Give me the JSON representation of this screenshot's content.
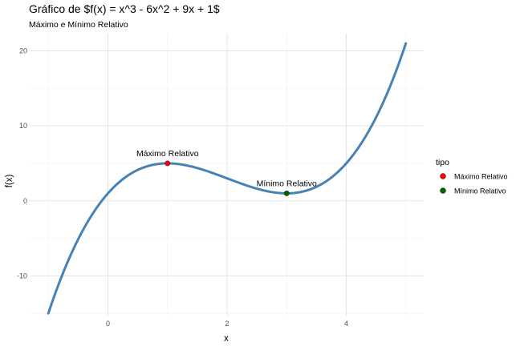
{
  "chart_data": {
    "type": "line",
    "title": "Gráfico de $f(x) = x^3 - 6x^2 + 9x + 1$",
    "subtitle": "Máximo e Mínimo Relativo",
    "xlabel": "x",
    "ylabel": "f(x)",
    "xlim": [
      -1.3,
      5.3
    ],
    "ylim": [
      -15.3,
      22.3
    ],
    "x_ticks": [
      0,
      2,
      4
    ],
    "y_ticks": [
      -10,
      0,
      10,
      20
    ],
    "x_tick_labels": [
      "0",
      "2",
      "4"
    ],
    "y_tick_labels": [
      "-10",
      "0",
      "10",
      "20"
    ],
    "grid": true,
    "legend_position": "right",
    "curve": {
      "x_range": [
        -1,
        5
      ],
      "coefficients": [
        1,
        -6,
        9,
        1
      ],
      "color": "#4682b4"
    },
    "points": [
      {
        "x": 1,
        "y": 5,
        "label": "Máximo Relativo",
        "tipo": "Máximo Relativo",
        "color": "#ff0000"
      },
      {
        "x": 3,
        "y": 1,
        "label": "Mínimo Relativo",
        "tipo": "Mínimo Relativo",
        "color": "#006400"
      }
    ],
    "legend": {
      "title": "tipo",
      "entries": [
        {
          "label": "Máximo Relativo",
          "color": "#ff0000"
        },
        {
          "label": "Mínimo Relativo",
          "color": "#006400"
        }
      ]
    }
  }
}
